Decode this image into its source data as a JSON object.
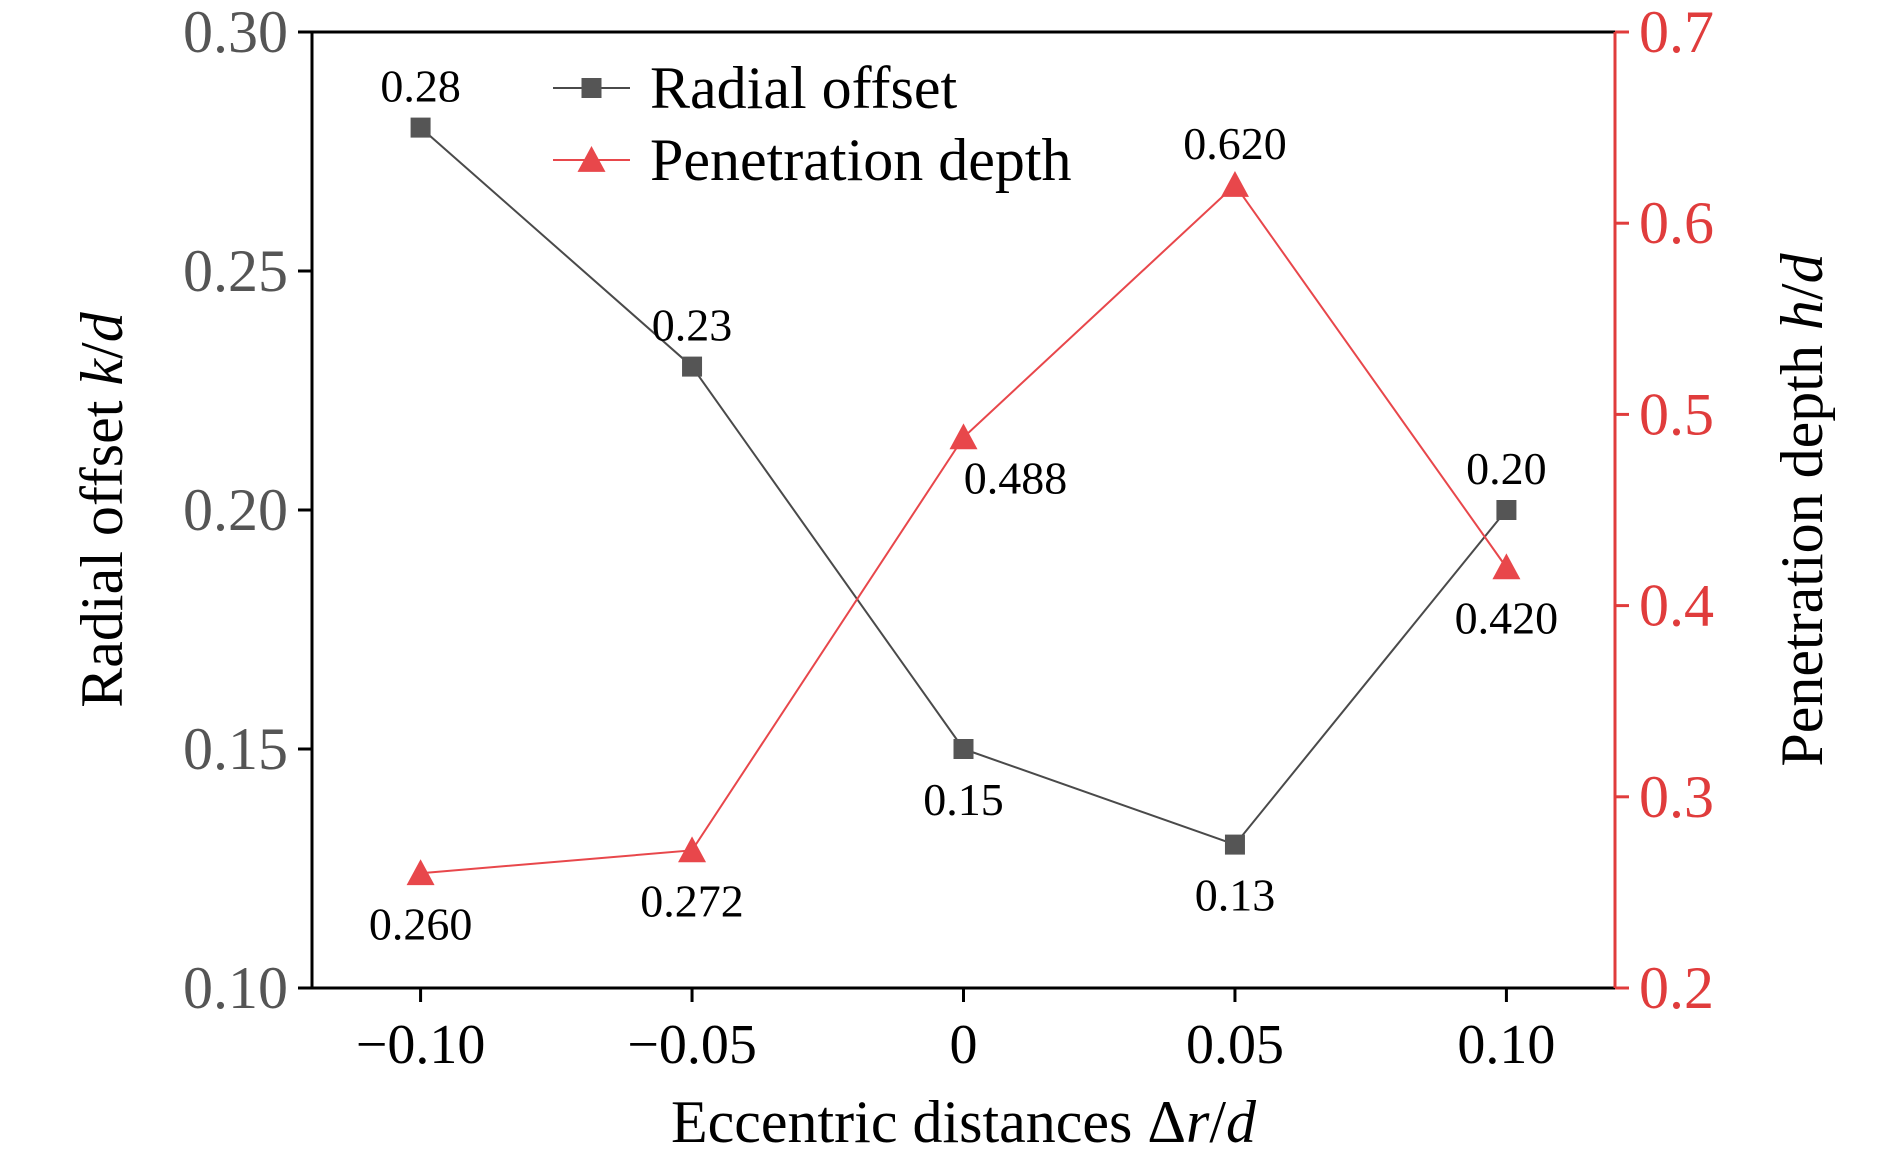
{
  "chart_data": {
    "type": "line",
    "x": [
      -0.1,
      -0.05,
      0,
      0.05,
      0.1
    ],
    "x_tick_labels": [
      "−0.10",
      "−0.05",
      "0",
      "0.05",
      "0.10"
    ],
    "xlim": [
      -0.12,
      0.12
    ],
    "xlabel": "Eccentric distances Δr/d",
    "ylabel_left": "Radial offset k/d",
    "ylabel_right": "Penetration depth h/d",
    "ylim_left": [
      0.1,
      0.3
    ],
    "ylim_right": [
      0.2,
      0.7
    ],
    "y_left_ticks": [
      0.1,
      0.15,
      0.2,
      0.25,
      0.3
    ],
    "y_left_tick_labels": [
      "0.10",
      "0.15",
      "0.20",
      "0.25",
      "0.30"
    ],
    "y_right_ticks": [
      0.2,
      0.3,
      0.4,
      0.5,
      0.6,
      0.7
    ],
    "y_right_tick_labels": [
      "0.2",
      "0.3",
      "0.4",
      "0.5",
      "0.6",
      "0.7"
    ],
    "grid": false,
    "legend_position": "top-center",
    "series": [
      {
        "name": "Radial offset",
        "axis": "left",
        "marker": "square",
        "color": "#555555",
        "line_color": "#4a4a4a",
        "values": [
          0.28,
          0.23,
          0.15,
          0.13,
          0.2
        ],
        "labels": [
          "0.28",
          "0.23",
          "0.15",
          "0.13",
          "0.20"
        ],
        "label_positions": [
          "above",
          "above",
          "below",
          "below",
          "above"
        ]
      },
      {
        "name": "Penetration depth",
        "axis": "right",
        "marker": "triangle",
        "color": "#e8474b",
        "line_color": "#e8474b",
        "values": [
          0.26,
          0.272,
          0.488,
          0.62,
          0.42
        ],
        "labels": [
          "0.260",
          "0.272",
          "0.488",
          "0.620",
          "0.420"
        ],
        "label_positions": [
          "below",
          "below",
          "below-right",
          "above",
          "below"
        ]
      }
    ]
  },
  "colors": {
    "left_axis": "#000000",
    "left_tick_text": "#555555",
    "right_axis": "#e03c3c",
    "text": "#000000"
  }
}
